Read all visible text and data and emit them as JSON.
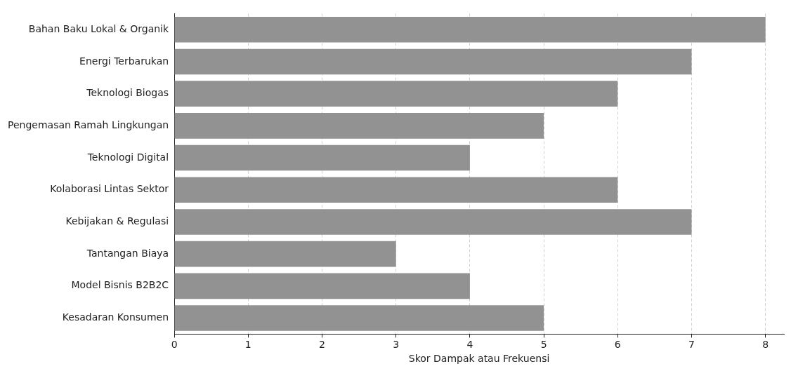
{
  "chart_data": {
    "type": "bar",
    "orientation": "horizontal",
    "xlabel": "Skor Dampak atau Frekuensi",
    "categories": [
      "Bahan Baku Lokal & Organik",
      "Energi Terbarukan",
      "Teknologi Biogas",
      "Pengemasan Ramah Lingkungan",
      "Teknologi Digital",
      "Kolaborasi Lintas Sektor",
      "Kebijakan & Regulasi",
      "Tantangan Biaya",
      "Model Bisnis B2B2C",
      "Kesadaran Konsumen"
    ],
    "values": [
      8,
      7,
      6,
      5,
      4,
      6,
      7,
      3,
      4,
      5
    ],
    "color": "#929292",
    "xlim": [
      0,
      8.25
    ],
    "xticks": [
      0,
      1,
      2,
      3,
      4,
      5,
      6,
      7,
      8
    ],
    "grid": "x"
  }
}
